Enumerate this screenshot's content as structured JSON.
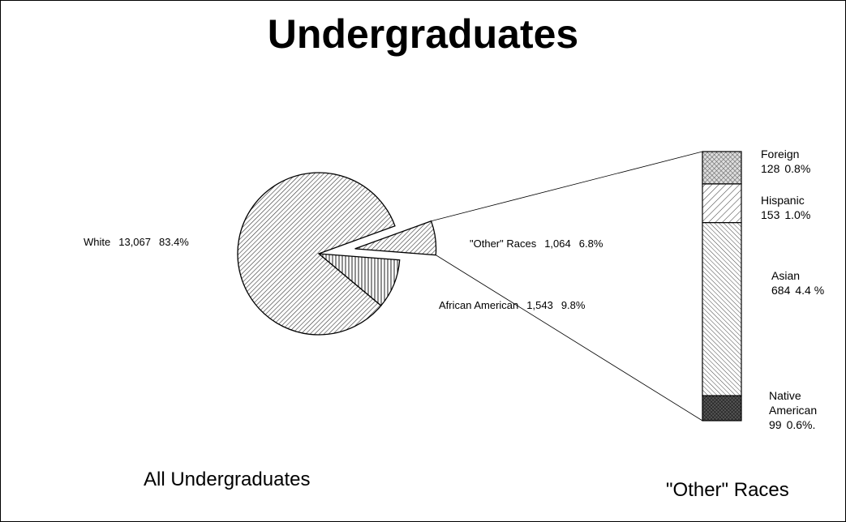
{
  "title": "Undergraduates",
  "chart_data": [
    {
      "type": "pie",
      "title": "All Undergraduates",
      "categories": [
        "\"Other\" Races",
        "African American",
        "White"
      ],
      "values": [
        1064,
        1543,
        13067
      ],
      "value_labels": [
        "1,064",
        "1,543",
        "13,067"
      ],
      "percents": [
        6.8,
        9.8,
        83.4
      ],
      "percent_labels": [
        "6.8%",
        "9.8%",
        "83.4%"
      ]
    },
    {
      "type": "stacked-bar",
      "title": "\"Other\" Races",
      "categories": [
        "Foreign",
        "Hispanic",
        "Asian",
        "Native American"
      ],
      "values": [
        128,
        153,
        684,
        99
      ],
      "percents": [
        0.8,
        1.0,
        4.4,
        0.6
      ],
      "percent_labels": [
        "0.8%",
        "1.0%",
        "4.4 %",
        "0.6%."
      ]
    }
  ]
}
